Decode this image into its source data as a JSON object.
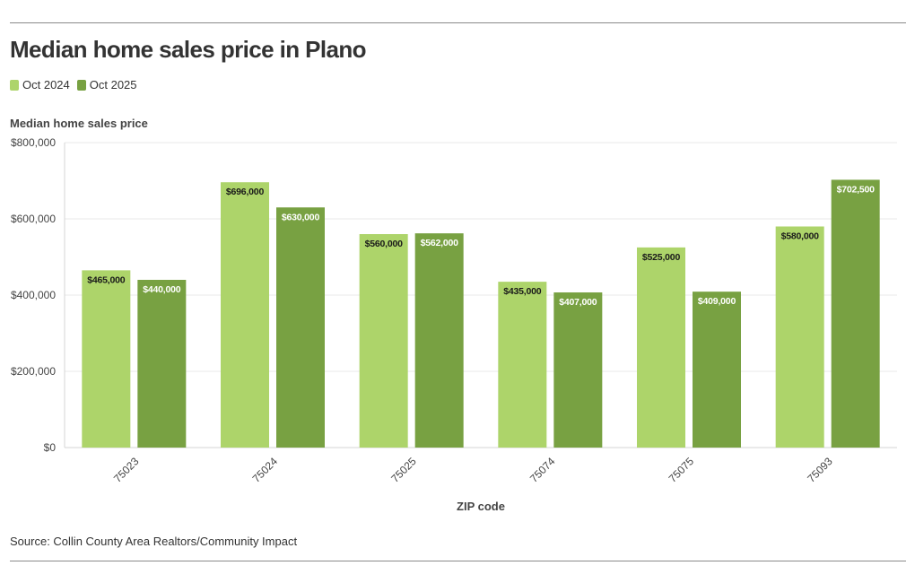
{
  "chart_data": {
    "type": "bar",
    "title": "Median home sales price in Plano",
    "ylabel": "Median home sales price",
    "xlabel": "ZIP code",
    "source": "Source: Collin County Area Realtors/Community Impact",
    "categories": [
      "75023",
      "75024",
      "75025",
      "75074",
      "75075",
      "75093"
    ],
    "series": [
      {
        "name": "Oct 2024",
        "color": "#add46a",
        "label_color": "#1a1a1a",
        "values": [
          465000,
          696000,
          560000,
          435000,
          525000,
          580000
        ],
        "labels": [
          "$465,000",
          "$696,000",
          "$560,000",
          "$435,000",
          "$525,000",
          "$580,000"
        ]
      },
      {
        "name": "Oct 2025",
        "color": "#78a142",
        "label_color": "#ffffff",
        "values": [
          440000,
          630000,
          562000,
          407000,
          409000,
          702500
        ],
        "labels": [
          "$440,000",
          "$630,000",
          "$562,000",
          "$407,000",
          "$409,000",
          "$702,500"
        ]
      }
    ],
    "ylim": [
      0,
      800000
    ],
    "yticks": [
      0,
      200000,
      400000,
      600000,
      800000
    ],
    "ytick_labels": [
      "$0",
      "$200,000",
      "$400,000",
      "$600,000",
      "$800,000"
    ],
    "grid": true,
    "legend_position": "top-left"
  }
}
